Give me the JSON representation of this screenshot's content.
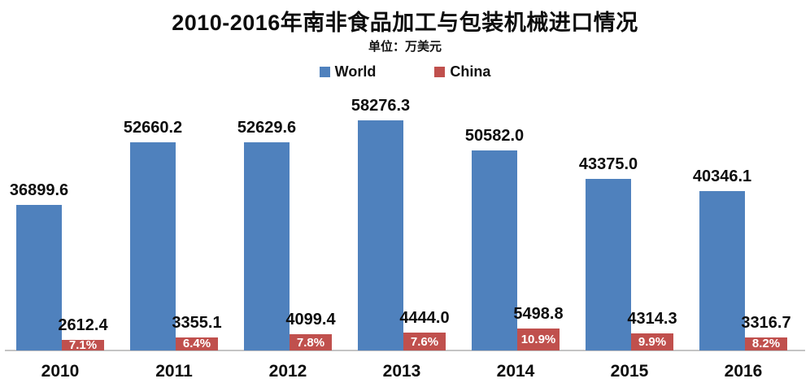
{
  "header": {
    "title": "2010-2016年南非食品加工与包装机械进口情况",
    "unit_label": "单位：万美元"
  },
  "legend": [
    {
      "label": "World",
      "color": "#4F81BD"
    },
    {
      "label": "China",
      "color": "#C0504D"
    }
  ],
  "chart_data": {
    "type": "bar",
    "title": "2010-2016年南非食品加工与包装机械进口情况",
    "unit": "万美元",
    "categories": [
      "2010",
      "2011",
      "2012",
      "2013",
      "2014",
      "2015",
      "2016"
    ],
    "series": [
      {
        "name": "World",
        "color": "#4F81BD",
        "values": [
          36899.6,
          52660.2,
          52629.6,
          58276.3,
          50582.0,
          43375.0,
          40346.1
        ]
      },
      {
        "name": "China",
        "color": "#C0504D",
        "values": [
          2612.4,
          3355.1,
          4099.4,
          4444.0,
          5498.8,
          4314.3,
          3316.7
        ]
      }
    ],
    "china_share_labels": [
      "7.1%",
      "6.4%",
      "7.8%",
      "7.6%",
      "10.9%",
      "9.9%",
      "8.2%"
    ],
    "value_labels_shown": true,
    "y_axis_shown": false,
    "gridlines": false,
    "legend_position": "top",
    "baseline_color": "#c4c4c4"
  }
}
